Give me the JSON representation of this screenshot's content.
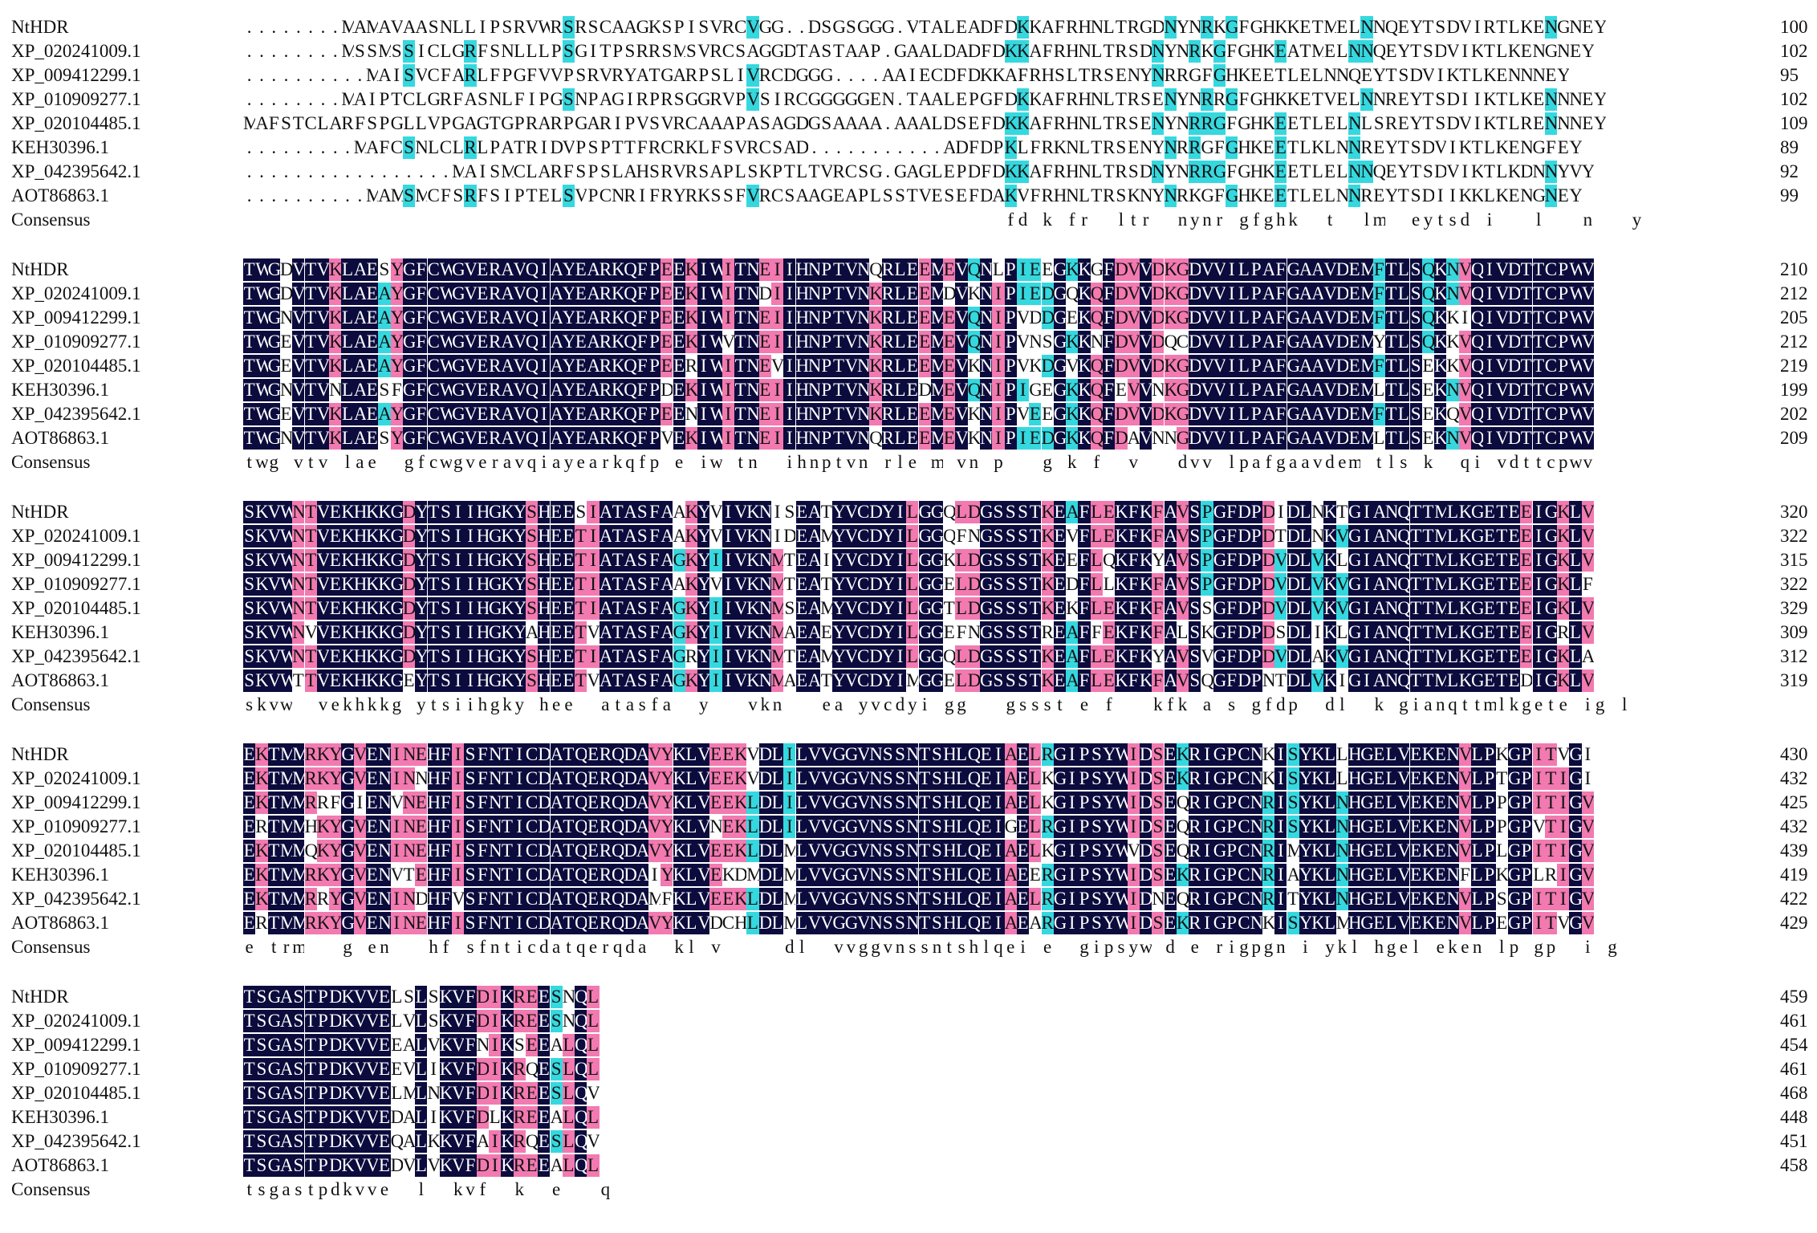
{
  "blocks": [
    {
      "rows": [
        {
          "name": "NtHDR",
          "seq": "........MAMAVAASNLLIPSRVWRSRSCAAGKSPISVRCVGG..DSGSGGG.VTALEADFDKKAFRHNLTRGDNYNRKGFGHKKETMELNNQEYTSDVIRTLKENGNEY",
          "num": "100"
        },
        {
          "name": "XP_020241009.1",
          "seq": "........MSSMSSICLGRFSNLLLPSGITPSRRSMSVRCSAGGDTASTAAP.GAALDADFDKKAFRHNLTRSDNYNRKGFGHKEATMELNNQEYTSDVIKTLKENGNEY",
          "num": "102"
        },
        {
          "name": "XP_009412299.1",
          "seq": "..........MAISVCFARLFPGFVVPSRVRYATGARPSLIVRCDGGG....AAIECDFDKKAFRHSLTRSENYNRRGFGHKEETLELNNQEYTSDVIKTLKENNNEY",
          "num": "95"
        },
        {
          "name": "XP_010909277.1",
          "seq": "........MAIPTCLGRFASNLFIPGSNPAGIRPRSGGRVPVSIRCGGGGGEN.TAALEPGFDKKAFRHNLTRSENYNRRGFGHKKETVELNNREYTSDIIKTLKENNNEY",
          "num": "102"
        },
        {
          "name": "XP_020104485.1",
          "seq": "MAFSTCLARFSPGLLVPGAGTGPRARPGARIPVSVRCAAAPASAGDGSAAAA.AAALDSEFDKKAFRHNLTRSENYNRRGFGHKEETLELNLSREYTSDVIKTLRENNNEY",
          "num": "109"
        },
        {
          "name": "KEH30396.1",
          "seq": ".........MAFCSNLCLRLPATRIDVPSPTTFRCRKLFSVRCSAD...........ADFDPKLFRKNLTRSENYNRRGFGHKEETLKLNNREYTSDVIKTLKENGFEY",
          "num": "89"
        },
        {
          "name": "XP_042395642.1",
          "seq": ".................MAISMCLARFSPSLAHSRVRSAPLSKPTLTVRCSG.GAGLEPDFDKKAFRHNLTRSDNYNRRGFGHKEETLELNNQEYTSDVIKTLKDNNYVY",
          "num": "92"
        },
        {
          "name": "AOT86863.1",
          "seq": "..........MAMSMCFSRFSIPTELSVPCNRIFRYRKSSFVRCSAAGEAPLSSTVESEFDAKVFRHNLTRSKNYNRKGFGHKEETLELNNREYTSDIIKKLKENGNEY",
          "num": "99"
        }
      ],
      "consensus": "                                                              fd k fr  ltr  nynr gfghk  t  lm  eytsd i   l   n   y"
    },
    {
      "rows": [
        {
          "name": "NtHDR",
          "seq": "TWGDVTVKLAESYGFCWGVERAVQIAYEARKQFPEEKIWITNEIIHNPTVNQRLEEMEVQNLPIEEGKKGFDVVDKGDVVILPAFGAAVDEMFTLSQKNVQIVDTTCPWV",
          "num": "210"
        },
        {
          "name": "XP_020241009.1",
          "seq": "TWGDVTVKLAEAYGFCWGVERAVQIAYEARKQFPEEKIWITNDIIHNPTVNKRLEEMDVKNIPIEDGQKQFDVVDKGDVVILPAFGAAVDEMFTLSQKNVQIVDTTCPWV",
          "num": "212"
        },
        {
          "name": "XP_009412299.1",
          "seq": "TWGNVTVKLAEAYGFCWGVERAVQIAYEARKQFPEEKIWITNEIIHNPTVNKRLEEMEVQNIPVDDGEKQFDVVDKGDVVILPAFGAAVDEMFTLSQKKIQIVDTTCPWV",
          "num": "205"
        },
        {
          "name": "XP_010909277.1",
          "seq": "TWGEVTVKLAEAYGFCWGVERAVQIAYEARKQFPEEKIWVTNEIIHNPTVNKRLEEMEVQNIPVNSGKKNFDVVDQCDVVILPAFGAAVDEMYTLSQKKVQIVDTTCPWV",
          "num": "212"
        },
        {
          "name": "XP_020104485.1",
          "seq": "TWGEVTVKLAEAYGFCWGVERAVQIAYEARKQFPEERIWITNEVIHNPTVNKRLEEMEVKNIPVKDGVKQFDVVDKGDVVILPAFGAAVDEMFTLSEKKVQIVDTTCPWV",
          "num": "219"
        },
        {
          "name": "KEH30396.1",
          "seq": "TWGNVTVNLAESFGFCWGVERAVQIAYEARKQFPDEKIWITNEIIHNPTVNKRLEDMEVQNIPIGEGKKQFEVVNKGDVVILPAFGAAVDEMLTLSEKNVQIVDTTCPWV",
          "num": "199"
        },
        {
          "name": "XP_042395642.1",
          "seq": "TWGEVTVKLAEAYGFCWGVERAVQIAYEARKQFPEENIWITNEIIHNPTVNKRLEEMEVKNIPVEEGKKQFDVVDKGDVVILPAFGAAVDEMFTLSEKQVQIVDTTCPWV",
          "num": "202"
        },
        {
          "name": "AOT86863.1",
          "seq": "TWGNVTVKLAESYGFCWGVERAVQIAYEARKQFPVEKIWITNEIIHNPTVNQRLEEMEVKNIPIEDGKKQFDAVNNGDVVILPAFGAAVDEMLTLSEKNVQIVDTTCPWV",
          "num": "209"
        }
      ],
      "consensus": "twg vtv lae  gfcwgveravqiayearkqfp e iw tn  ihnptvn rle m vn p   g k f  v   dvv lpafgaavdem tls k  qi vdttcpwv"
    },
    {
      "rows": [
        {
          "name": "NtHDR",
          "seq": "SKVWNTVEKHKKGDYTSIIHGKYSHEESIATASFAAKYVIVKNISEATYVCDYILGGQLDGSSSTKEAFLEKFKFAVSPGFDPDIDLNKTGIANQTTMLKGETEEIGKLV",
          "num": "320"
        },
        {
          "name": "XP_020241009.1",
          "seq": "SKVWNTVEKHKKGDYTSIIHGKYSHEETIATASFAAKYVIVKNIDEAMYVCDYILGGQFNGSSSTKEVFLEKFKFAVSPGFDPDTDLNKVGIANQTTMLKGETEEIGKLV",
          "num": "322"
        },
        {
          "name": "XP_009412299.1",
          "seq": "SKVWNTVEKHKKGDYTSIIHGKYSHEETIATASFAGKYIIVKNMTEAIYVCDYILGGKLDGSSSTKEEFLQKFKYAVSPGFDPDVDLVKLGIANQTTMLKGETEEIGKLV",
          "num": "315"
        },
        {
          "name": "XP_010909277.1",
          "seq": "SKVWNTVEKHKKGDYTSIIHGKYSHEETIATASFAAKYVIVKNMTEATYVCDYILGGELDGSSSTKEDFLLKFKFAVSPGFDPDVDLVKVGIANQTTMLKGETEEIGKLF",
          "num": "322"
        },
        {
          "name": "XP_020104485.1",
          "seq": "SKVWNTVEKHKKGDYTSIIHGKYSHEETIATASFAGKYIIVKNMSEAMYVCDYILGGTLDGSSSTKEKFLEKFKFAVSSGFDPDVDLVKVGIANQTTMLKGETEEIGKLV",
          "num": "329"
        },
        {
          "name": "KEH30396.1",
          "seq": "SKVWNVVEKHKKGDYTSIIHGKYAHEETVATASFAGKYIIVKNMAEAEYVCDYILGGEFNGSSSTREAFFEKFKFALSKGFDPDSDLIKLGIANQTTMLKGETEEIGRLV",
          "num": "309"
        },
        {
          "name": "XP_042395642.1",
          "seq": "SKVWNTVEKHKKGDYTSIIHGKYSHEETIATASFAGRYIIVKNMTEAMYVCDYILGGQLDGSSSTKEAFLEKFKYAVSVGFDPDVDLAKVGIANQTTMLKGETEEIGKLA",
          "num": "312"
        },
        {
          "name": "AOT86863.1",
          "seq": "SKVWTTVEKHKKGEYTSIIHGKYSHEETVATASFAGKYIIVKNMAEATYVCDYIMGGELDGSSSTKEAFLEKFKFAVSQGFDPNTDLVKIGIANQTTMLKGETEDIGKLV",
          "num": "319"
        }
      ],
      "consensus": "skvw  vekhkkg ytsiihgky hee  atasfa  y   vkn   ea yvcdyi gg   gssst e f   kfk a s gfdp  dl  k gianqttmlkgete ig l "
    },
    {
      "rows": [
        {
          "name": "NtHDR",
          "seq": "EKTMMRKYGVENINEHFISFNTICDATQERQDAVYKLVEEKVDLILVVGGVNSSNTSHLQEIAELRGIPSYWIDSEKRIGPCNKISYKLLHGELVEKENVLPKGPITVGI",
          "num": "430"
        },
        {
          "name": "XP_020241009.1",
          "seq": "EKTMMRKYGVENINNHFISFNTICDATQERQDAVYKLVEEKVDLILVVGGVNSSNTSHLQEIAELKGIPSYWIDSEKRIGPCNKISYKLLHGELVEKENVLPTGPITIGI",
          "num": "432"
        },
        {
          "name": "XP_009412299.1",
          "seq": "EKTMMRRFGIENVNEHFISFNTICDATQERQDAVYKLVEEKLDLILVVGGVNSSNTSHLQEIAELKGIPSYWIDSEQRIGPCNRISYKLNHGELVEKENVLPPGPITIGV",
          "num": "425"
        },
        {
          "name": "XP_010909277.1",
          "seq": "ERTMMHKYGVENINEHFISFNTICDATQERQDAVYKLVNEKLDLILVVGGVNSSNTSHLQEIGELRGIPSYWIDSEQRIGPCNRISYKLNHGELVEKENVLPPGPVTIGV",
          "num": "432"
        },
        {
          "name": "XP_020104485.1",
          "seq": "EKTMMQKYGVENINEHFISFNTICDATQERQDAVYKLVEEKLDLMLVVGGVNSSNTSHLQEIAELKGIPSYWVDSEQRIGPCNRIMYKLNHGELVEKENVLPLGPITIGV",
          "num": "439"
        },
        {
          "name": "KEH30396.1",
          "seq": "EKTMMRKYGVENVTEHFISFNTICDATQERQDAIYKLVEKDMDLMLVVGGVNSSNTSHLQEIAEERGIPSYWIDSEKRIGPCNRIAYKLNHGELVEKENFLPKGPLRIGV",
          "num": "419"
        },
        {
          "name": "XP_042395642.1",
          "seq": "EKTMMRRYGVENINDHFVSFNTICDATQERQDAMFKLVEEKLDLMLVVGGVNSSNTSHLQEIAELRGIPSYWIDNEQRIGPCNRITYKLNHGELVEKENVLPSGPITIGV",
          "num": "422"
        },
        {
          "name": "AOT86863.1",
          "seq": "ERTMMRKYGVENINEHFISFNTICDATQERQDAVYKLVDCHLDLMLVVGGVNSSNTSHLQEIAEARGIPSYWIDSEKRIGPCNKISYKLMHGELVEKENVLPEGPITVGV",
          "num": "429"
        }
      ],
      "consensus": "e trm   g en   hf sfnticdatqerqda  kl v     dl  vvggvnssntshlqei e  gipsyw d e rigpgn i ykl hgel eken lp gp  i g"
    },
    {
      "rows": [
        {
          "name": "NtHDR",
          "seq": "TSGASTPDKVVELSLSKVFDIKREESNQL",
          "num": "459"
        },
        {
          "name": "XP_020241009.1",
          "seq": "TSGASTPDKVVELVLSKVFDIKREESNQL",
          "num": "461"
        },
        {
          "name": "XP_009412299.1",
          "seq": "TSGASTPDKVVEEALVKVFNIKSEEALQL",
          "num": "454"
        },
        {
          "name": "XP_010909277.1",
          "seq": "TSGASTPDKVVEEVLIKVFDIKRQESLQL",
          "num": "461"
        },
        {
          "name": "XP_020104485.1",
          "seq": "TSGASTPDKVVELMLNKVFDIKREESLQV",
          "num": "468"
        },
        {
          "name": "KEH30396.1",
          "seq": "TSGASTPDKVVEDALIKVFDLKREEALQL",
          "num": "448"
        },
        {
          "name": "XP_042395642.1",
          "seq": "TSGASTPDKVVEQALKKVFAIKRQESLQV",
          "num": "451"
        },
        {
          "name": "AOT86863.1",
          "seq": "TSGASTPDKVVEDVLVKVFDIKREEALQL",
          "num": "458"
        }
      ],
      "consensus": "tsgastpdkvve  l  kvf  k  e   q "
    }
  ],
  "consensus_label": "Consensus",
  "colors": {
    "identical": "#0b0b3d",
    "high": "#f27ab0",
    "medium": "#36d8df"
  }
}
